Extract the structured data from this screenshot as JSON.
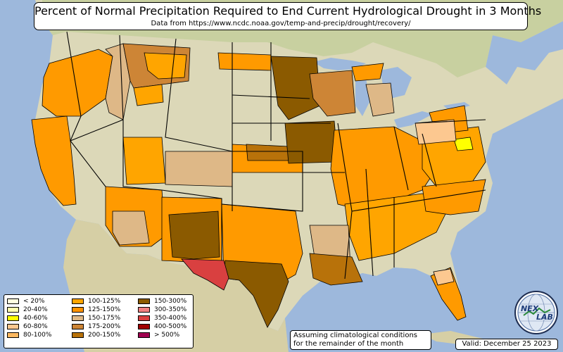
{
  "header": {
    "title": "Percent of Normal Precipitation Required to End Current Hydrological Drought in 3 Months",
    "subtitle": "Data from https://www.ncdc.noaa.gov/temp-and-precip/drought/recovery/"
  },
  "legend": {
    "items": [
      {
        "label": "< 20%",
        "color": "#ffffe0"
      },
      {
        "label": "20-40%",
        "color": "#ffffb0"
      },
      {
        "label": "40-60%",
        "color": "#ffff00"
      },
      {
        "label": "60-80%",
        "color": "#fcc890"
      },
      {
        "label": "80-100%",
        "color": "#fcb860"
      },
      {
        "label": "100-125%",
        "color": "#ffa500"
      },
      {
        "label": "125-150%",
        "color": "#ff9200"
      },
      {
        "label": "150-175%",
        "color": "#deb887"
      },
      {
        "label": "175-200%",
        "color": "#cd8536"
      },
      {
        "label": "200-150%",
        "color": "#b8720a"
      },
      {
        "label": "150-300%",
        "color": "#8b5a00"
      },
      {
        "label": "300-350%",
        "color": "#f08080"
      },
      {
        "label": "350-400%",
        "color": "#d94040"
      },
      {
        "label": "400-500%",
        "color": "#a00000"
      },
      {
        "label": "> 500%",
        "color": "#a00050"
      }
    ]
  },
  "note": {
    "line1": "Assuming climatological conditions",
    "line2": "for the remainder of the month"
  },
  "valid": "Valid: December 25 2023",
  "logo": {
    "icon": "nexlab-globe-logo",
    "text_left": "NEX",
    "text_right": "LAB"
  },
  "colors": {
    "ocean": "#9db8dc",
    "land": "#dcd8b8",
    "drought_100_125": "#ffa500",
    "drought_150_300": "#8b5a00",
    "drought_350_400": "#d94040"
  }
}
